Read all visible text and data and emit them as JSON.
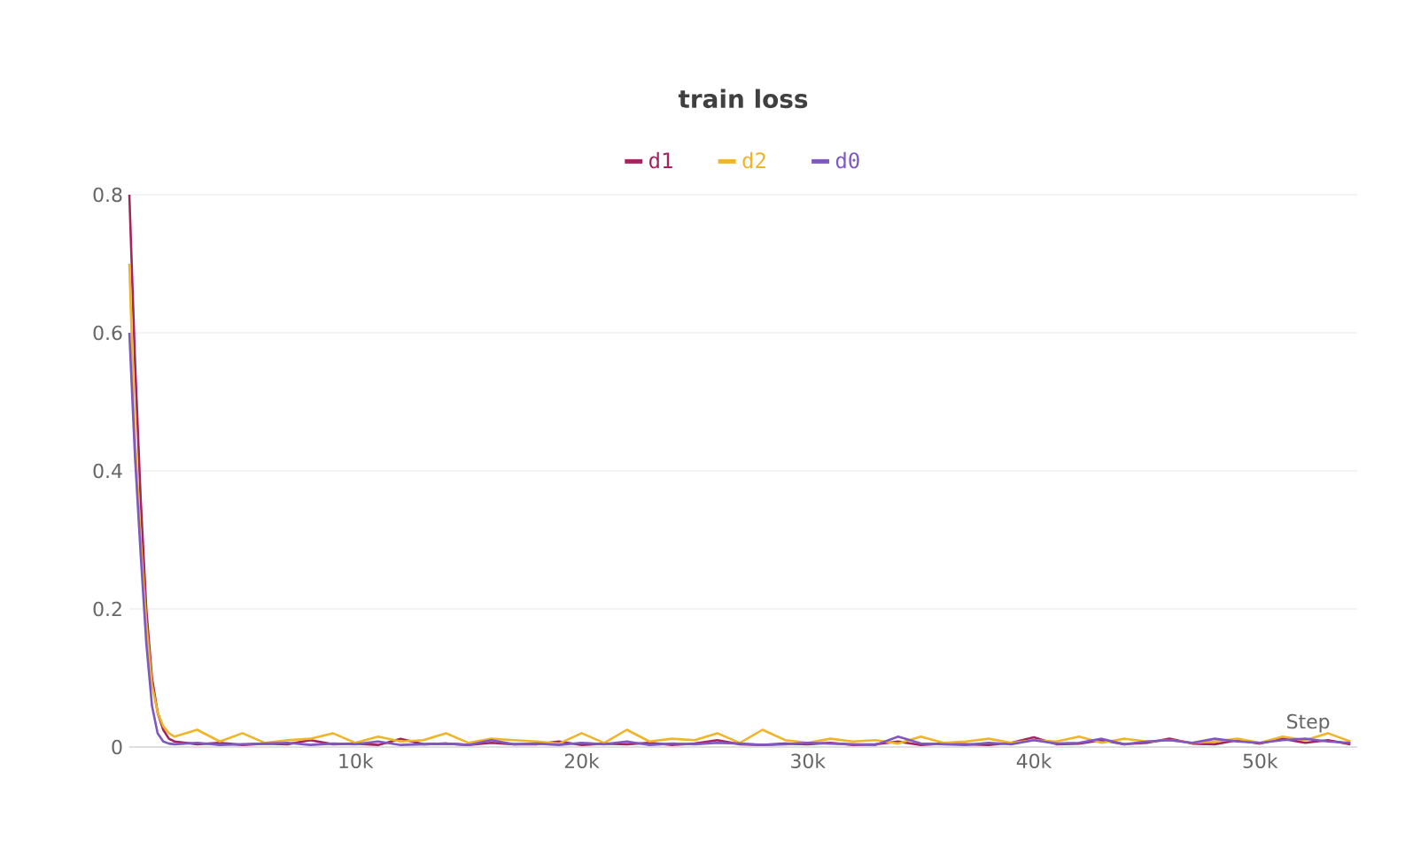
{
  "chart_data": {
    "type": "line",
    "title": "train loss",
    "xlabel": "Step",
    "x": [
      0,
      250,
      500,
      750,
      1000,
      1250,
      1500,
      1750,
      2000,
      3000,
      4000,
      5000,
      6000,
      7000,
      8000,
      9000,
      10000,
      11000,
      12000,
      13000,
      14000,
      15000,
      16000,
      17000,
      18000,
      19000,
      20000,
      21000,
      22000,
      23000,
      24000,
      25000,
      26000,
      27000,
      28000,
      29000,
      30000,
      31000,
      32000,
      33000,
      34000,
      35000,
      36000,
      37000,
      38000,
      39000,
      40000,
      41000,
      42000,
      43000,
      44000,
      45000,
      46000,
      47000,
      48000,
      49000,
      50000,
      51000,
      52000,
      53000,
      54000
    ],
    "series": [
      {
        "name": "d1",
        "color": "#a3245e",
        "values": [
          0.8,
          0.56,
          0.36,
          0.2,
          0.1,
          0.05,
          0.025,
          0.012,
          0.008,
          0.004,
          0.006,
          0.003,
          0.005,
          0.004,
          0.01,
          0.004,
          0.005,
          0.003,
          0.012,
          0.004,
          0.005,
          0.003,
          0.006,
          0.004,
          0.004,
          0.008,
          0.003,
          0.005,
          0.004,
          0.006,
          0.003,
          0.005,
          0.01,
          0.004,
          0.003,
          0.005,
          0.004,
          0.006,
          0.003,
          0.004,
          0.008,
          0.003,
          0.005,
          0.004,
          0.003,
          0.006,
          0.014,
          0.004,
          0.005,
          0.01,
          0.004,
          0.006,
          0.012,
          0.005,
          0.004,
          0.01,
          0.005,
          0.012,
          0.006,
          0.01,
          0.004
        ]
      },
      {
        "name": "d2",
        "color": "#f0b429",
        "values": [
          0.7,
          0.45,
          0.3,
          0.18,
          0.09,
          0.05,
          0.03,
          0.02,
          0.015,
          0.025,
          0.008,
          0.02,
          0.006,
          0.01,
          0.012,
          0.02,
          0.006,
          0.015,
          0.008,
          0.01,
          0.02,
          0.006,
          0.012,
          0.01,
          0.008,
          0.005,
          0.02,
          0.006,
          0.025,
          0.008,
          0.012,
          0.01,
          0.02,
          0.006,
          0.025,
          0.01,
          0.006,
          0.012,
          0.008,
          0.01,
          0.005,
          0.015,
          0.006,
          0.008,
          0.012,
          0.006,
          0.01,
          0.008,
          0.015,
          0.006,
          0.012,
          0.008,
          0.01,
          0.006,
          0.008,
          0.012,
          0.006,
          0.015,
          0.01,
          0.02,
          0.008
        ]
      },
      {
        "name": "d0",
        "color": "#7e57c2",
        "values": [
          0.6,
          0.42,
          0.28,
          0.15,
          0.06,
          0.02,
          0.008,
          0.005,
          0.004,
          0.006,
          0.003,
          0.004,
          0.005,
          0.006,
          0.003,
          0.005,
          0.004,
          0.008,
          0.003,
          0.004,
          0.005,
          0.003,
          0.01,
          0.004,
          0.005,
          0.003,
          0.006,
          0.004,
          0.008,
          0.003,
          0.005,
          0.004,
          0.006,
          0.005,
          0.003,
          0.004,
          0.006,
          0.005,
          0.004,
          0.003,
          0.015,
          0.005,
          0.004,
          0.003,
          0.006,
          0.004,
          0.01,
          0.005,
          0.006,
          0.012,
          0.004,
          0.008,
          0.01,
          0.006,
          0.012,
          0.008,
          0.006,
          0.01,
          0.012,
          0.008,
          0.006
        ]
      }
    ],
    "xlim": [
      0,
      54300
    ],
    "ylim": [
      0,
      0.8
    ],
    "xticks": [
      {
        "value": 10000,
        "label": "10k"
      },
      {
        "value": 20000,
        "label": "20k"
      },
      {
        "value": 30000,
        "label": "30k"
      },
      {
        "value": 40000,
        "label": "40k"
      },
      {
        "value": 50000,
        "label": "50k"
      }
    ],
    "yticks": [
      0,
      0.2,
      0.4,
      0.6,
      0.8
    ],
    "grid": "y",
    "legend": "top",
    "marker": "none",
    "line_style": "solid"
  }
}
